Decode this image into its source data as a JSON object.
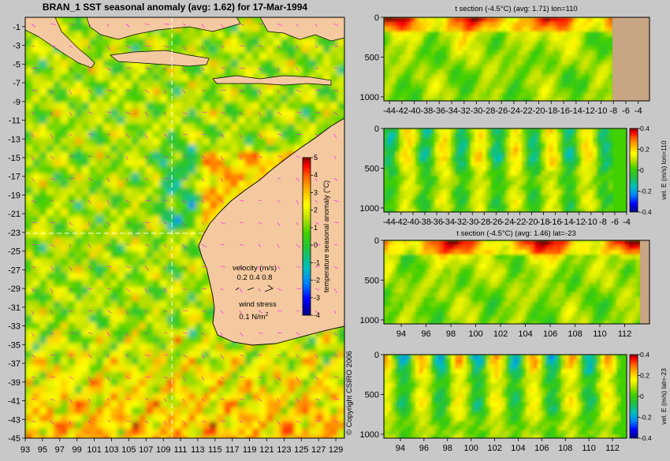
{
  "figure": {
    "main_title": "BRAN_1  SST seasonal anomaly (avg: 1.62) for 17-Mar-1994",
    "copyright": "© Copyright CSIRO 2006"
  },
  "colors": {
    "land": "#f4c9a0",
    "section_land": "#c8a583",
    "background": "#c8c8c8",
    "velocity_arrow": "#ff00ff",
    "colormap": [
      "#00007f",
      "#0000ff",
      "#0080ff",
      "#00c0c0",
      "#20c040",
      "#40d000",
      "#c0e000",
      "#ffff00",
      "#ffb000",
      "#ff6000",
      "#ff0000",
      "#7f0000"
    ]
  },
  "chart_data": [
    {
      "id": "map",
      "type": "heatmap",
      "title": "BRAN_1  SST seasonal anomaly (avg: 1.62) for 17-Mar-1994",
      "x_ticks": [
        "93",
        "95",
        "97",
        "99",
        "101",
        "103",
        "105",
        "107",
        "109",
        "111",
        "113",
        "115",
        "117",
        "119",
        "121",
        "123",
        "125",
        "127",
        "129"
      ],
      "y_ticks": [
        "-1",
        "-3",
        "-5",
        "-7",
        "-9",
        "-11",
        "-13",
        "-15",
        "-17",
        "-19",
        "-21",
        "-23",
        "-25",
        "-27",
        "-29",
        "-31",
        "-33",
        "-35",
        "-37",
        "-39",
        "-41",
        "-43",
        "-45"
      ],
      "xlim": [
        93,
        130
      ],
      "ylim": [
        -45,
        0
      ],
      "section_lon": 110,
      "section_lat": -23,
      "colorbar": {
        "label": "temperature seasonal anomaly (°C)",
        "ticks": [
          "5",
          "4",
          "3",
          "2",
          "1",
          "0",
          "-1",
          "-2",
          "-3",
          "-4"
        ],
        "range": [
          -4,
          5
        ]
      },
      "legend": {
        "velocity_title": "velocity (m/s)",
        "velocity_values": "0.2 0.4 0.8",
        "wind_title": "wind stress",
        "wind_value": "0.1 N/m",
        "wind_exp": "2"
      }
    },
    {
      "id": "t-section-lon",
      "type": "heatmap",
      "title": "t section (-4.5°C) (avg: 1.71) lon=110",
      "x_ticks": [
        "-44",
        "-42",
        "-40",
        "-38",
        "-36",
        "-34",
        "-32",
        "-30",
        "-28",
        "-26",
        "-24",
        "-22",
        "-20",
        "-18",
        "-16",
        "-14",
        "-12",
        "-10",
        "-8",
        "-6",
        "-4"
      ],
      "y_ticks": [
        "0",
        "500",
        "1000"
      ],
      "ylim": [
        1050,
        0
      ]
    },
    {
      "id": "v-section-lon",
      "type": "heatmap",
      "title": "",
      "x_ticks": [
        "-44",
        "-42",
        "-40",
        "-38",
        "-36",
        "-34",
        "-32",
        "-30",
        "-28",
        "-26",
        "-24",
        "-22",
        "-20",
        "-18",
        "-16",
        "-14",
        "-12",
        "-10",
        "-8",
        "-6",
        "-4"
      ],
      "y_ticks": [
        "0",
        "500",
        "1000"
      ],
      "ylim": [
        1050,
        0
      ],
      "colorbar": {
        "label": "vel. E (m/s) lon=110",
        "ticks": [
          "0.4",
          "0.2",
          "0",
          "-0.2",
          "-0.4"
        ],
        "range": [
          -0.4,
          0.4
        ]
      }
    },
    {
      "id": "t-section-lat",
      "type": "heatmap",
      "title": "t section (-4.5°C) (avg: 1.46) lat=-23",
      "x_ticks": [
        "94",
        "96",
        "98",
        "100",
        "102",
        "104",
        "106",
        "108",
        "110",
        "112"
      ],
      "y_ticks": [
        "0",
        "500",
        "1000"
      ],
      "ylim": [
        1050,
        0
      ]
    },
    {
      "id": "v-section-lat",
      "type": "heatmap",
      "title": "",
      "x_ticks": [
        "94",
        "96",
        "98",
        "100",
        "102",
        "104",
        "106",
        "108",
        "110",
        "112"
      ],
      "y_ticks": [
        "0",
        "500",
        "1000"
      ],
      "ylim": [
        1050,
        0
      ],
      "colorbar": {
        "label": "vel. E (m/s) lat=-23",
        "ticks": [
          "0.4",
          "0.2",
          "0",
          "-0.2",
          "-0.4"
        ],
        "range": [
          -0.4,
          0.4
        ]
      }
    }
  ]
}
